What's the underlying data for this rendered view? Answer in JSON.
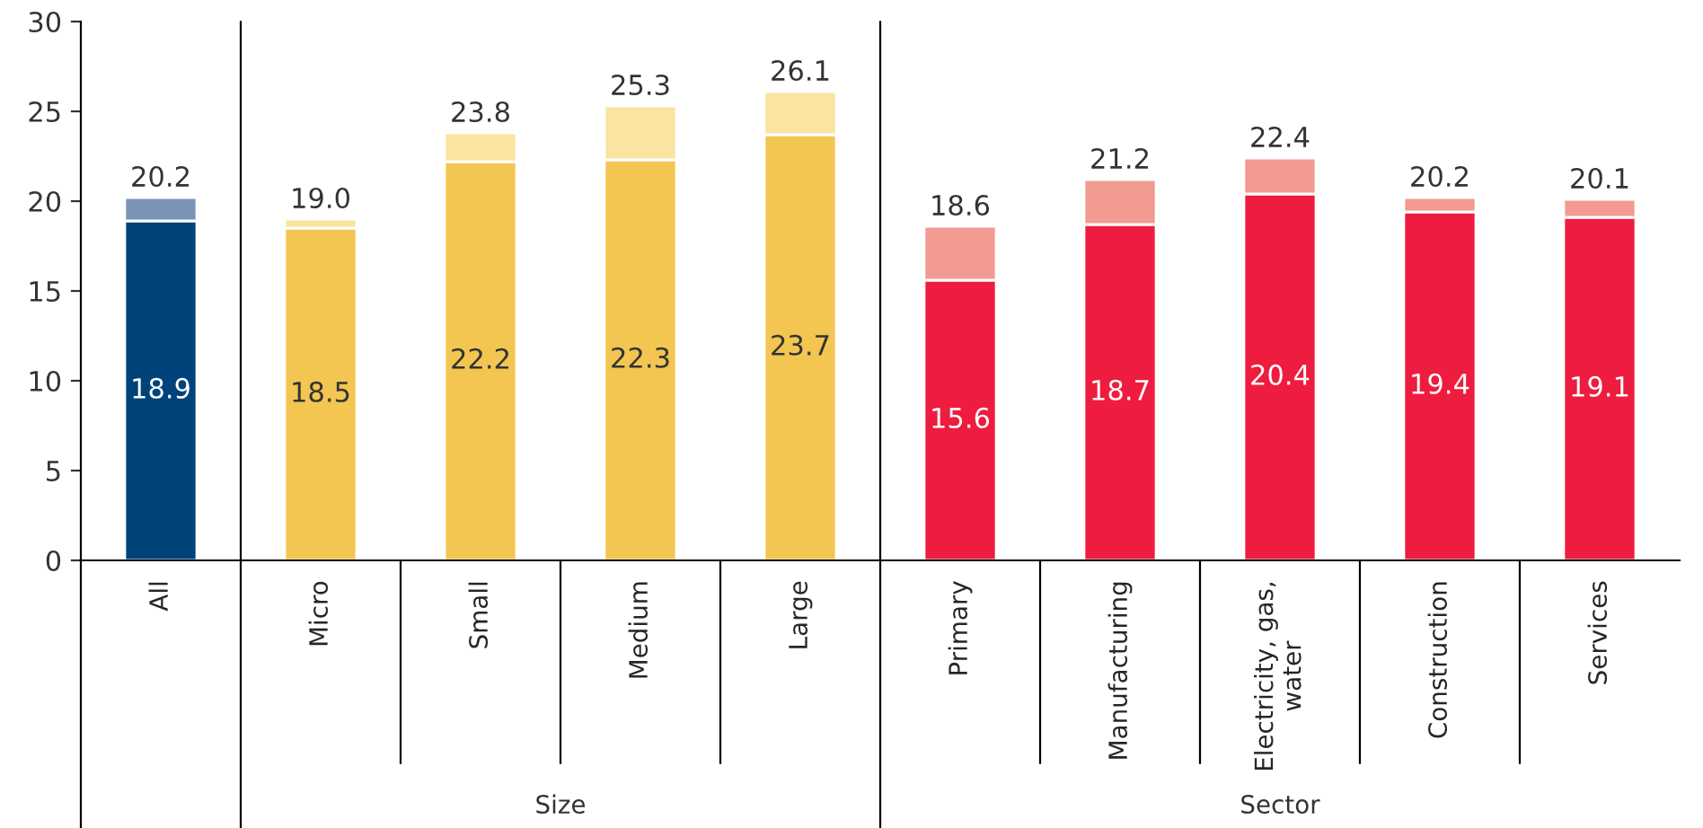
{
  "chart_data": {
    "type": "bar",
    "stacked": true,
    "categories": [
      "All",
      "Micro",
      "Small",
      "Medium",
      "Large",
      "Primary",
      "Manufacturing",
      "Electricity, gas, water",
      "Construction",
      "Services"
    ],
    "series": [
      {
        "colors": [
          "#00427a",
          "#f2c650",
          "#f2c650",
          "#f2c650",
          "#f2c650",
          "#ee1c3e",
          "#ee1c3e",
          "#ee1c3e",
          "#ee1c3e",
          "#ee1c3e"
        ],
        "values": [
          18.9,
          18.5,
          22.2,
          22.3,
          23.7,
          15.6,
          18.7,
          20.4,
          19.4,
          19.1
        ],
        "value_labels": [
          "18.9",
          "18.5",
          "22.2",
          "22.3",
          "23.7",
          "15.6",
          "18.7",
          "20.4",
          "19.4",
          "19.1"
        ]
      },
      {
        "colors": [
          "#7b93b8",
          "#fbe3a0",
          "#fbe3a0",
          "#fbe3a0",
          "#fbe3a0",
          "#f29b90",
          "#f29b90",
          "#f29b90",
          "#f29b90",
          "#f29b90"
        ],
        "values": [
          1.3,
          0.5,
          1.6,
          3.0,
          2.4,
          3.0,
          2.5,
          2.0,
          0.8,
          1.0
        ]
      }
    ],
    "totals": [
      "20.2",
      "19.0",
      "23.8",
      "25.3",
      "26.1",
      "18.6",
      "21.2",
      "22.4",
      "20.2",
      "20.1"
    ],
    "ylim": [
      0,
      30
    ],
    "yticks": [
      0,
      5,
      10,
      15,
      20,
      25,
      30
    ],
    "annotations": [
      "Size",
      "Sector"
    ],
    "grid": false,
    "legend": false
  }
}
